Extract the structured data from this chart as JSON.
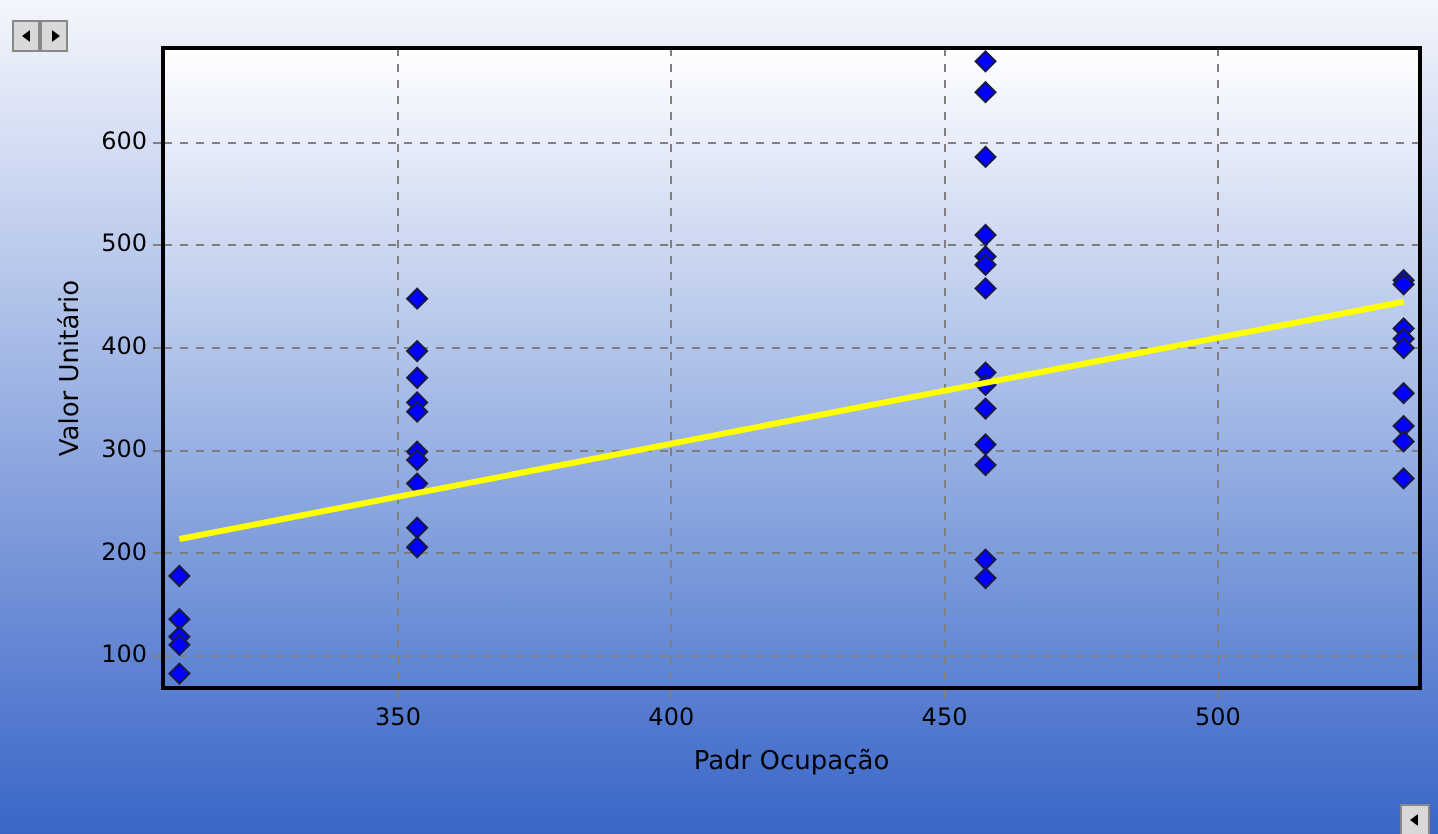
{
  "chart_data": {
    "type": "scatter",
    "xlabel": "Padr Ocupação",
    "ylabel": "Valor Unitário",
    "xlim": [
      307,
      537
    ],
    "xticks": [
      350,
      400,
      450,
      500
    ],
    "ylim": [
      69,
      692
    ],
    "yticks": [
      100,
      200,
      300,
      400,
      500,
      600
    ],
    "grid": true,
    "legend": false,
    "marker": "diamond",
    "series": [
      {
        "color": "#0000ff",
        "x": [
          310,
          310,
          310,
          310,
          310,
          353.5,
          353.5,
          353.5,
          353.5,
          353.5,
          353.5,
          353.5,
          353.5,
          353.5,
          353.5,
          457.5,
          457.5,
          457.5,
          457.5,
          457.5,
          457.5,
          457.5,
          457.5,
          457.5,
          457.5,
          457.5,
          457.5,
          457.5,
          457.5,
          534,
          534,
          534,
          534,
          534,
          534,
          534,
          534,
          534
        ],
        "values": [
          178,
          136,
          119,
          111,
          83,
          448,
          397,
          371,
          347,
          338,
          299,
          291,
          268,
          225,
          206,
          679,
          649,
          586,
          510,
          489,
          481,
          458,
          376,
          364,
          341,
          306,
          286,
          194,
          176,
          466,
          462,
          419,
          409,
          400,
          356,
          324,
          309,
          273
        ]
      },
      {
        "type": "line",
        "color": "#ffff00",
        "marker": "none",
        "x": [
          310,
          534
        ],
        "values": [
          214,
          445
        ]
      }
    ]
  }
}
